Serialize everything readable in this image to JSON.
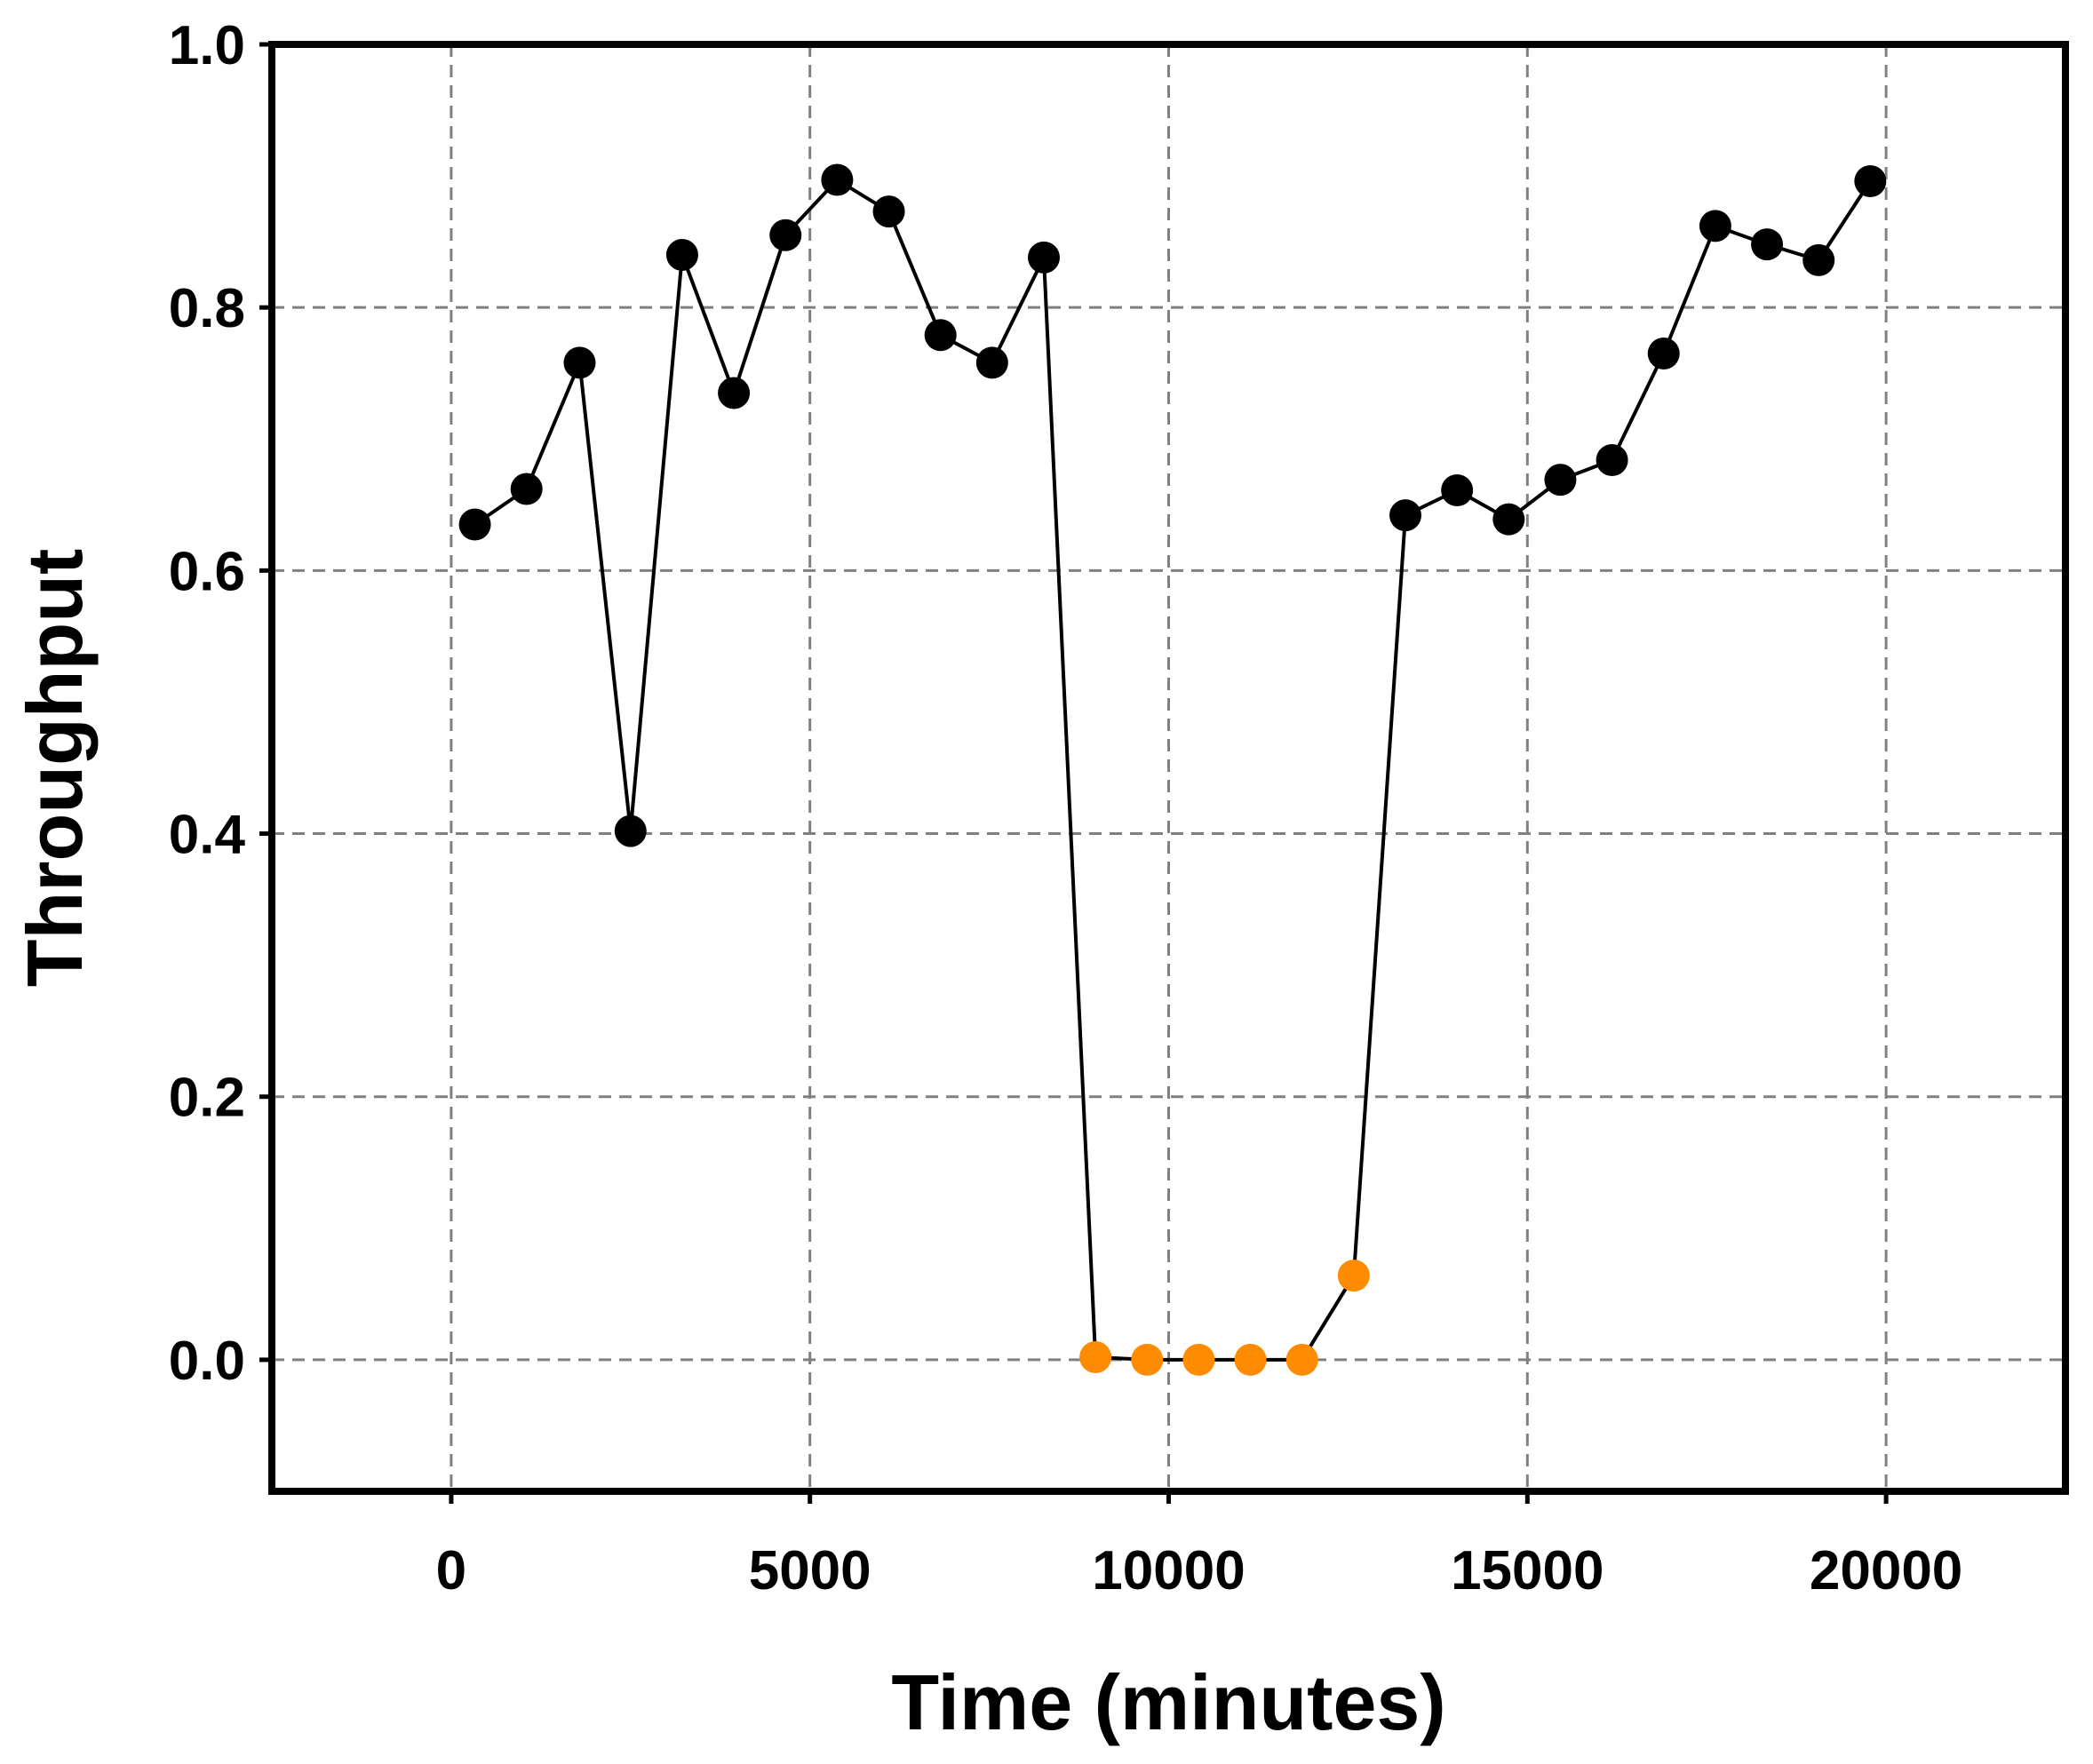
{
  "chart_data": {
    "type": "line",
    "xlabel": "Time (minutes)",
    "ylabel": "Throughput",
    "xlim": [
      -2500,
      22500
    ],
    "ylim": [
      -0.1,
      1.0
    ],
    "xticks": [
      0,
      5000,
      10000,
      15000,
      20000
    ],
    "yticks": [
      0.0,
      0.2,
      0.4,
      0.6,
      0.8,
      1.0
    ],
    "xtick_labels": [
      "0",
      "5000",
      "10000",
      "15000",
      "20000"
    ],
    "ytick_labels": [
      "0.0",
      "0.2",
      "0.4",
      "0.6",
      "0.8",
      "1.0"
    ],
    "grid": true,
    "line_color": "#000000",
    "point_colors": {
      "normal": "#000000",
      "outage": "#ff8c00"
    },
    "points": [
      {
        "x": 330,
        "y": 0.635,
        "kind": "normal"
      },
      {
        "x": 1050,
        "y": 0.662,
        "kind": "normal"
      },
      {
        "x": 1790,
        "y": 0.758,
        "kind": "normal"
      },
      {
        "x": 2500,
        "y": 0.402,
        "kind": "normal"
      },
      {
        "x": 3220,
        "y": 0.84,
        "kind": "normal"
      },
      {
        "x": 3940,
        "y": 0.735,
        "kind": "normal"
      },
      {
        "x": 4660,
        "y": 0.855,
        "kind": "normal"
      },
      {
        "x": 5380,
        "y": 0.897,
        "kind": "normal"
      },
      {
        "x": 6100,
        "y": 0.873,
        "kind": "normal"
      },
      {
        "x": 6820,
        "y": 0.779,
        "kind": "normal"
      },
      {
        "x": 7540,
        "y": 0.758,
        "kind": "normal"
      },
      {
        "x": 8260,
        "y": 0.838,
        "kind": "normal"
      },
      {
        "x": 8980,
        "y": 0.002,
        "kind": "outage"
      },
      {
        "x": 9700,
        "y": 0.0,
        "kind": "outage"
      },
      {
        "x": 10420,
        "y": 0.0,
        "kind": "outage"
      },
      {
        "x": 11140,
        "y": 0.0,
        "kind": "outage"
      },
      {
        "x": 11860,
        "y": 0.0,
        "kind": "outage"
      },
      {
        "x": 12580,
        "y": 0.064,
        "kind": "outage"
      },
      {
        "x": 13300,
        "y": 0.642,
        "kind": "normal"
      },
      {
        "x": 14020,
        "y": 0.661,
        "kind": "normal"
      },
      {
        "x": 14740,
        "y": 0.639,
        "kind": "normal"
      },
      {
        "x": 15460,
        "y": 0.669,
        "kind": "normal"
      },
      {
        "x": 16180,
        "y": 0.684,
        "kind": "normal"
      },
      {
        "x": 16900,
        "y": 0.765,
        "kind": "normal"
      },
      {
        "x": 17620,
        "y": 0.862,
        "kind": "normal"
      },
      {
        "x": 18340,
        "y": 0.848,
        "kind": "normal"
      },
      {
        "x": 19060,
        "y": 0.836,
        "kind": "normal"
      },
      {
        "x": 19780,
        "y": 0.896,
        "kind": "normal"
      }
    ]
  }
}
